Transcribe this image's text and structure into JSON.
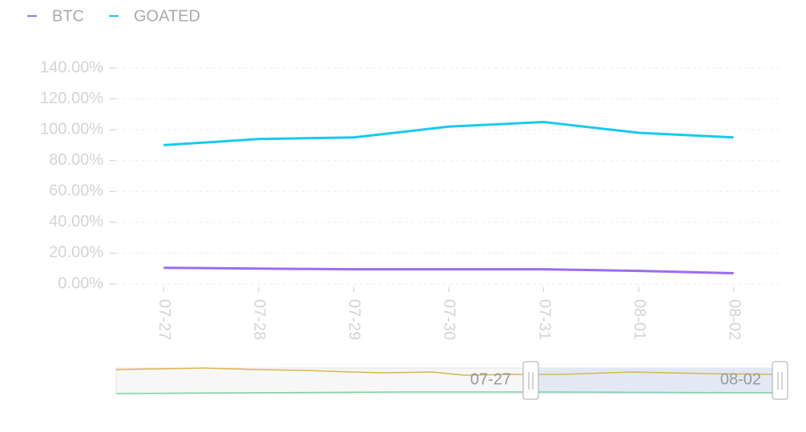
{
  "chart_data": {
    "type": "line",
    "categories": [
      "07-27",
      "07-28",
      "07-29",
      "07-30",
      "07-31",
      "08-01",
      "08-02"
    ],
    "series": [
      {
        "name": "BTC",
        "color": "#9d6cf0",
        "values": [
          10.5,
          10,
          9.5,
          9.5,
          9.5,
          8.5,
          7
        ]
      },
      {
        "name": "GOATED",
        "color": "#18c9f0",
        "values": [
          90,
          94,
          95,
          102,
          105,
          98,
          95
        ]
      }
    ],
    "ylim": [
      0,
      140
    ],
    "yticks": [
      {
        "value": 0,
        "label": "0.00%"
      },
      {
        "value": 20,
        "label": "20.00%"
      },
      {
        "value": 40,
        "label": "40.00%"
      },
      {
        "value": 60,
        "label": "60.00%"
      },
      {
        "value": 80,
        "label": "80.00%"
      },
      {
        "value": 100,
        "label": "100.00%"
      },
      {
        "value": 120,
        "label": "120.00%"
      },
      {
        "value": 140,
        "label": "140.00%"
      }
    ],
    "grid": true
  }
}
